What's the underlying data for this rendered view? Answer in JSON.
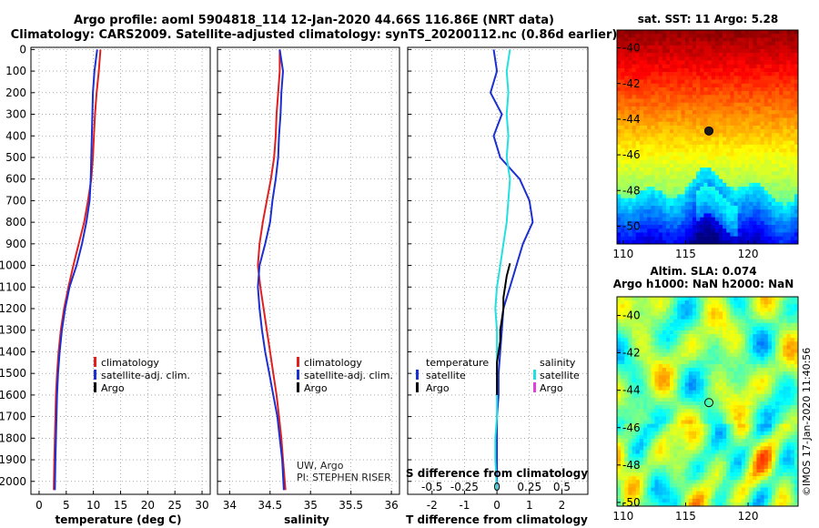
{
  "title": {
    "line1": "Argo profile: aoml 5904818_114 12-Jan-2020 44.66S 116.86E (NRT data)",
    "line2": "Climatology: CARS2009. Satellite-adjusted climatology: synTS_20200112.nc (0.86d earlier)"
  },
  "depth_ticks": [
    "0",
    "100",
    "200",
    "300",
    "400",
    "500",
    "600",
    "700",
    "800",
    "900",
    "1000",
    "1100",
    "1200",
    "1300",
    "1400",
    "1500",
    "1600",
    "1700",
    "1800",
    "1900",
    "2000"
  ],
  "colors": {
    "climatology": "#e02020",
    "satellite": "#1c2fd0",
    "argo": "#000000",
    "sat_salinity": "#22e0e0",
    "argo_salinity": "#e040e0"
  },
  "chart_data": [
    {
      "type": "line",
      "id": "temperature",
      "xlabel": "temperature (deg C)",
      "ylabel": "",
      "xlim": [
        -1.5,
        31.5
      ],
      "ylim": [
        2060,
        -10
      ],
      "x_ticks": [
        "0",
        "5",
        "10",
        "15",
        "20",
        "25",
        "30"
      ],
      "legend": [
        "climatology",
        "satellite-adj. clim.",
        "Argo"
      ],
      "series": [
        {
          "name": "climatology",
          "color": "#e02020",
          "x": [
            11.3,
            11.0,
            10.6,
            10.3,
            10.1,
            9.9,
            9.6,
            9.0,
            8.3,
            7.3,
            6.3,
            5.4,
            4.6,
            4.0,
            3.6,
            3.3,
            3.1,
            3.0,
            2.9,
            2.8,
            2.7
          ],
          "y": [
            0,
            100,
            200,
            300,
            400,
            500,
            600,
            700,
            800,
            900,
            1000,
            1100,
            1200,
            1300,
            1400,
            1500,
            1600,
            1700,
            1800,
            1900,
            2040
          ]
        },
        {
          "name": "satellite-adj. clim.",
          "color": "#1c2fd0",
          "x": [
            10.7,
            10.2,
            9.9,
            9.8,
            9.7,
            9.6,
            9.5,
            9.3,
            8.7,
            7.9,
            6.9,
            5.6,
            4.8,
            4.2,
            3.8,
            3.5,
            3.3,
            3.2,
            3.1,
            3.0,
            2.9
          ],
          "y": [
            0,
            100,
            200,
            300,
            400,
            500,
            600,
            700,
            800,
            900,
            1000,
            1100,
            1200,
            1300,
            1400,
            1500,
            1600,
            1700,
            1800,
            1900,
            2040
          ]
        }
      ]
    },
    {
      "type": "line",
      "id": "salinity",
      "xlabel": "salinity",
      "ylabel": "",
      "xlim": [
        33.85,
        36.1
      ],
      "ylim": [
        2060,
        -10
      ],
      "x_ticks": [
        "34",
        "34.5",
        "35",
        "35.5",
        "36"
      ],
      "legend": [
        "climatology",
        "satellite-adj. clim.",
        "Argo"
      ],
      "credits": [
        "UW, Argo",
        "PI: STEPHEN RISER"
      ],
      "series": [
        {
          "name": "climatology",
          "color": "#e02020",
          "x": [
            34.62,
            34.62,
            34.6,
            34.58,
            34.57,
            34.55,
            34.51,
            34.46,
            34.41,
            34.37,
            34.35,
            34.38,
            34.42,
            34.46,
            34.5,
            34.54,
            34.58,
            34.61,
            34.64,
            34.66,
            34.69
          ],
          "y": [
            0,
            100,
            200,
            300,
            400,
            500,
            600,
            700,
            800,
            900,
            1000,
            1100,
            1200,
            1300,
            1400,
            1500,
            1600,
            1700,
            1800,
            1900,
            2040
          ]
        },
        {
          "name": "satellite-adj. clim.",
          "color": "#1c2fd0",
          "x": [
            34.62,
            34.66,
            34.64,
            34.63,
            34.61,
            34.6,
            34.57,
            34.53,
            34.5,
            34.44,
            34.37,
            34.35,
            34.37,
            34.4,
            34.44,
            34.49,
            34.54,
            34.59,
            34.62,
            34.65,
            34.67
          ],
          "y": [
            0,
            100,
            200,
            300,
            400,
            500,
            600,
            700,
            800,
            900,
            1000,
            1100,
            1200,
            1300,
            1400,
            1500,
            1600,
            1700,
            1800,
            1900,
            2040
          ]
        }
      ]
    },
    {
      "type": "line",
      "id": "difference",
      "xlabel": "T difference from climatology",
      "ylabel": "",
      "xlim": [
        -2.75,
        2.8
      ],
      "ylim": [
        2060,
        -10
      ],
      "x_ticks": [
        "-2",
        "-1",
        "0",
        "1",
        "2"
      ],
      "top_label": "S difference from climatology",
      "top_ticks": [
        "-0.5",
        "-0.25",
        "0",
        "0.25",
        "0.5"
      ],
      "legend_temperature": {
        "heading": "temperature",
        "items": [
          "satellite",
          "Argo"
        ]
      },
      "legend_salinity": {
        "heading": "salinity",
        "items": [
          "satellite",
          "Argo"
        ]
      },
      "series": [
        {
          "name": "",
          "color": "#1c2fd0",
          "x": [
            -0.1,
            0.0,
            -0.2,
            0.15,
            -0.1,
            0.1,
            0.7,
            1.0,
            1.1,
            0.8,
            0.6,
            0.4,
            0.2,
            0.15,
            0.1,
            0.05,
            0.05,
            0.0,
            0.0,
            0.0,
            0.0
          ],
          "y": [
            0,
            100,
            200,
            300,
            400,
            500,
            600,
            700,
            800,
            900,
            1000,
            1100,
            1200,
            1300,
            1400,
            1500,
            1600,
            1700,
            1800,
            1900,
            2040
          ]
        },
        {
          "name": "",
          "color": "#22e0e0",
          "x": [
            0.4,
            0.3,
            0.35,
            0.3,
            0.35,
            0.3,
            0.4,
            0.35,
            0.3,
            0.2,
            0.1,
            0.0,
            -0.05,
            0.0,
            0.0,
            0.0,
            0.0,
            0.0,
            -0.05,
            -0.05,
            0.0
          ],
          "y": [
            0,
            100,
            200,
            300,
            400,
            500,
            600,
            700,
            800,
            900,
            1000,
            1100,
            1200,
            1300,
            1400,
            1500,
            1600,
            1700,
            1800,
            1900,
            2040
          ]
        },
        {
          "name": "",
          "color": "#000000",
          "x": [
            0.4,
            0.3,
            0.25,
            0.2,
            0.2,
            0.15,
            0.1,
            0.1,
            0.05,
            0.0,
            0.0,
            0.0
          ],
          "y": [
            990,
            1050,
            1100,
            1150,
            1200,
            1250,
            1300,
            1350,
            1400,
            1450,
            1500,
            1600
          ]
        }
      ]
    }
  ],
  "maps": [
    {
      "id": "sst",
      "title": "sat. SST: 11 Argo: 5.28",
      "x_ticks": [
        "110",
        "115",
        "120"
      ],
      "y_ticks": [
        "-40",
        "-42",
        "-44",
        "-46",
        "-48",
        "-50"
      ],
      "xlim": [
        109.5,
        124
      ],
      "ylim": [
        -39.0,
        -51.0
      ],
      "colormap": "jet",
      "float_lon": 116.86,
      "float_lat": -44.66
    },
    {
      "id": "sla",
      "title_line1": "Altim. SLA: 0.074",
      "title_line2": "Argo h1000: NaN h2000: NaN",
      "x_ticks": [
        "110",
        "115",
        "120"
      ],
      "y_ticks": [
        "-40",
        "-42",
        "-44",
        "-46",
        "-48",
        "-50"
      ],
      "xlim": [
        109.5,
        124
      ],
      "ylim": [
        -39.0,
        -50.2
      ],
      "colormap": "jet",
      "float_lon": 116.86,
      "float_lat": -44.66
    }
  ],
  "stamp": "©IMOS 17-Jan-2020 11:40:56"
}
